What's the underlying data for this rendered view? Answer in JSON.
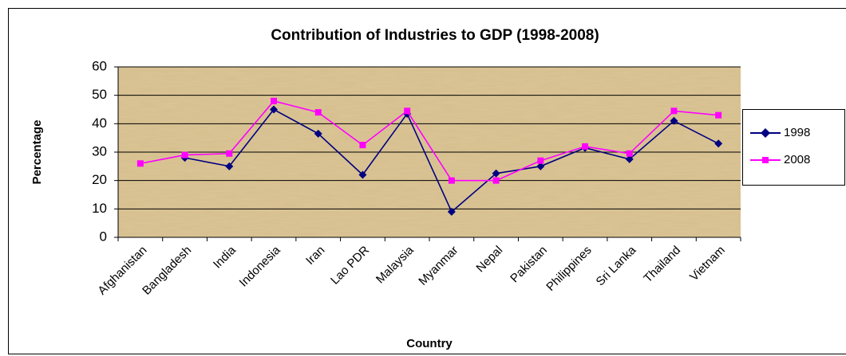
{
  "chart_data": {
    "type": "line",
    "title": "Contribution of Industries to  GDP (1998-2008)",
    "x_label": "Country",
    "y_label": "Percentage",
    "categories": [
      "Afghanistan",
      "Bangladesh",
      "India",
      "Indonesia",
      "Iran",
      "Lao PDR",
      "Malaysia",
      "Myanmar",
      "Nepal",
      "Pakistan",
      "Philippines",
      "Sri Lanka",
      "Thailand",
      "Vietnam"
    ],
    "series": [
      {
        "name": "1998",
        "color": "#000080",
        "marker": "diamond",
        "values": [
          null,
          28,
          25,
          45,
          36.5,
          22,
          43.5,
          9,
          22.5,
          25,
          31.5,
          27.5,
          41,
          33
        ]
      },
      {
        "name": "2008",
        "color": "#ff00ff",
        "marker": "square",
        "values": [
          26,
          29,
          29.5,
          48,
          44,
          32.5,
          44.5,
          20,
          20,
          27,
          32,
          29.5,
          44.5,
          43
        ]
      }
    ],
    "ylim": [
      0,
      60
    ],
    "yticks": [
      0,
      10,
      20,
      30,
      40,
      50,
      60
    ],
    "grid": true,
    "legend": "right"
  }
}
